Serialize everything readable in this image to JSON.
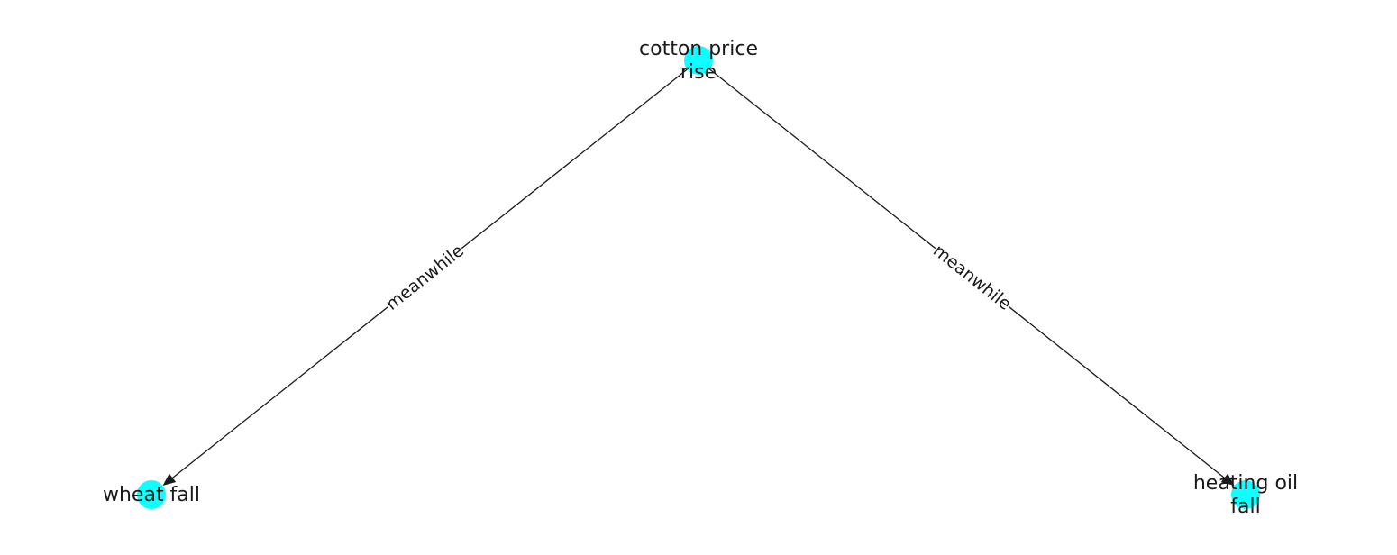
{
  "diagram": {
    "nodes": [
      {
        "id": "cotton",
        "label_lines": [
          "cotton price",
          "rise"
        ],
        "color": "#00ffff"
      },
      {
        "id": "wheat",
        "label_lines": [
          "wheat fall"
        ],
        "color": "#00ffff"
      },
      {
        "id": "heating",
        "label_lines": [
          "heating oil",
          "fall"
        ],
        "color": "#00ffff"
      }
    ],
    "edges": [
      {
        "id": "cotton-wheat",
        "from": "cotton",
        "to": "wheat",
        "label": "meanwhile",
        "directed": true
      },
      {
        "id": "cotton-heating",
        "from": "cotton",
        "to": "heating",
        "label": "meanwhile",
        "directed": true
      }
    ]
  }
}
